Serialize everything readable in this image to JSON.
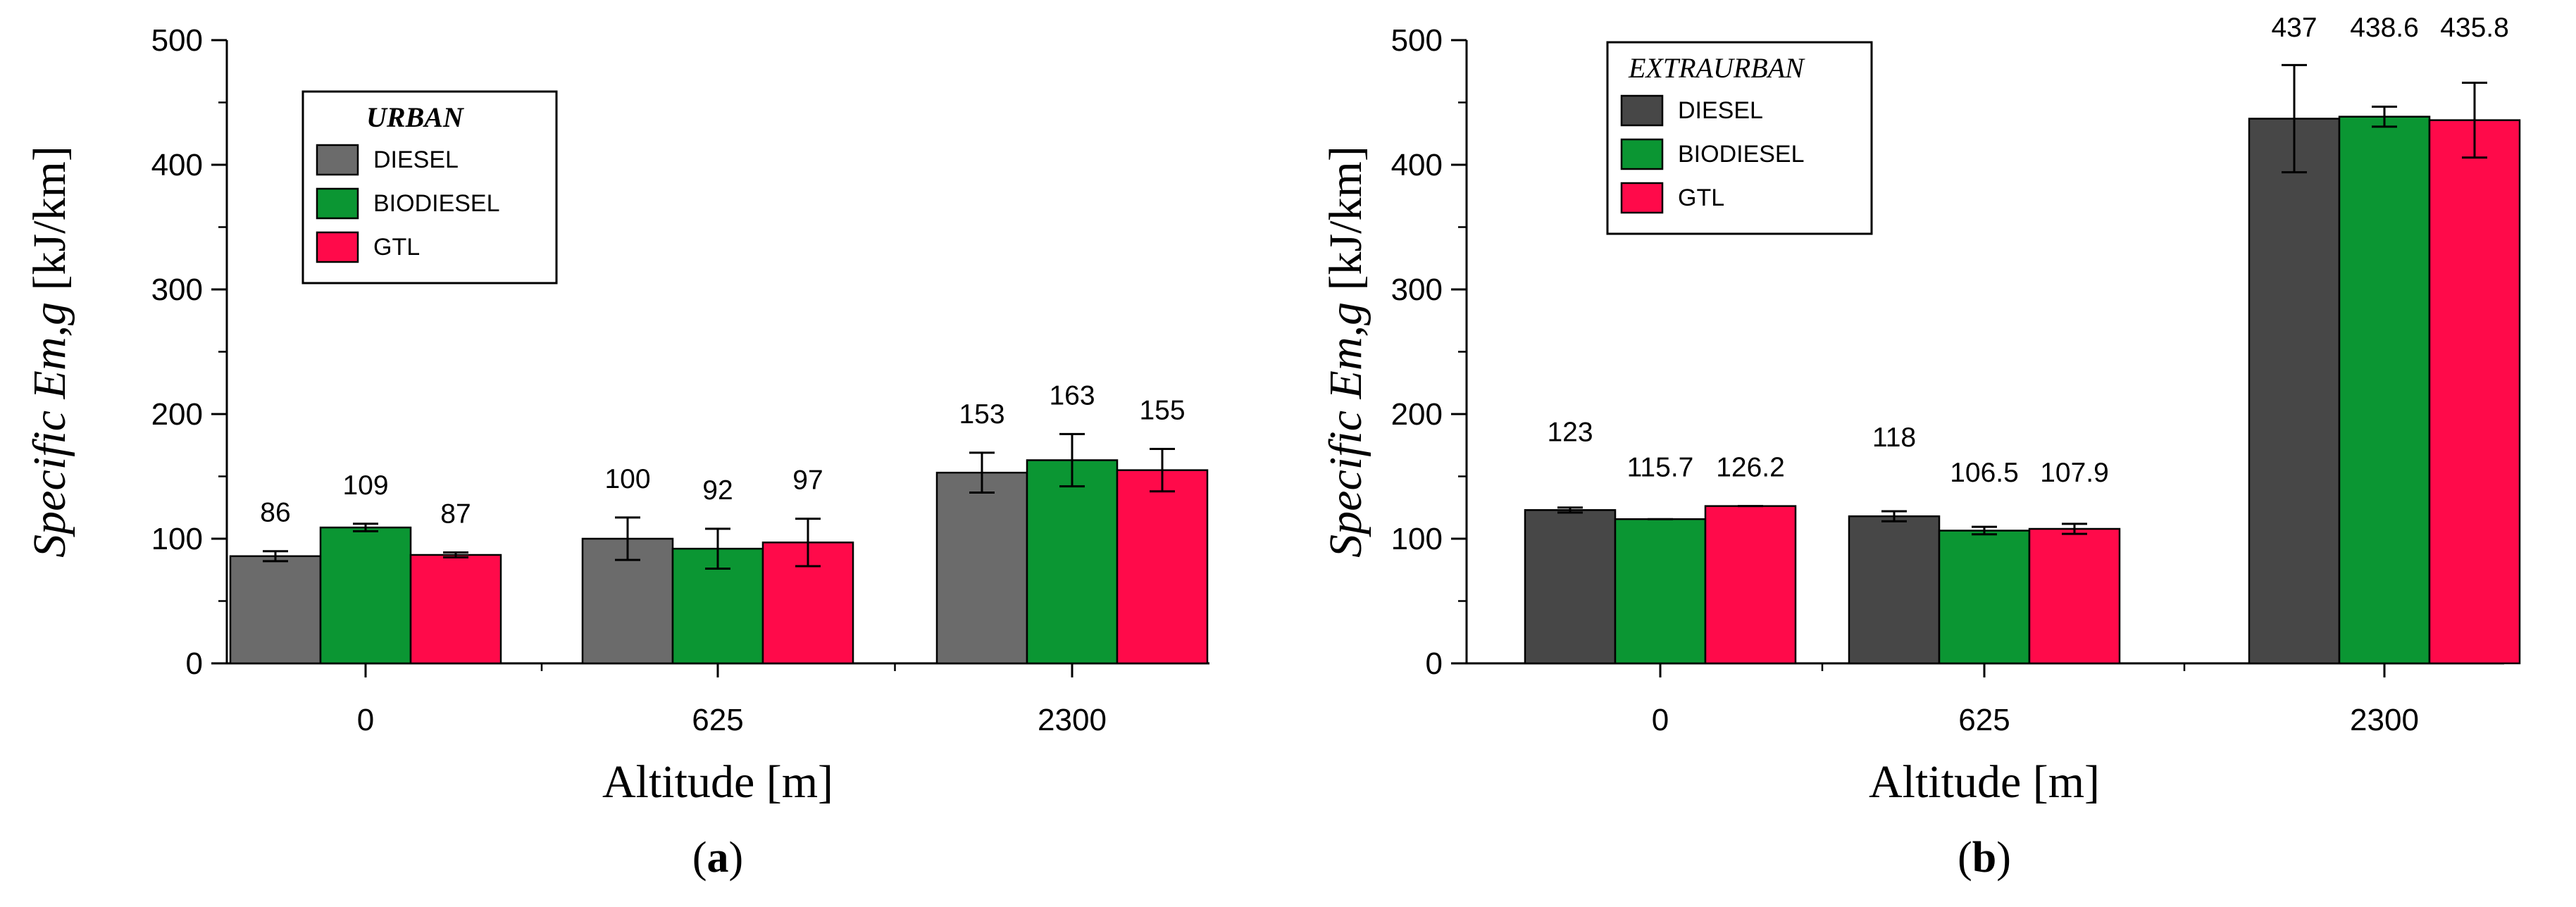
{
  "chart_data": [
    {
      "type": "bar",
      "panel": "a",
      "legend_title": "URBAN",
      "xlabel": "Altitude [m]",
      "ylabel_italic": "Specific Em,g",
      "ylabel_unit": "[kJ/km]",
      "ylim": [
        0,
        500
      ],
      "yticks": [
        0,
        100,
        200,
        300,
        400,
        500
      ],
      "categories": [
        "0",
        "625",
        "2300"
      ],
      "series": [
        {
          "name": "DIESEL",
          "color": "#6b6b6b",
          "values": [
            86,
            100,
            153
          ],
          "errors": [
            4,
            17,
            16
          ],
          "labels": [
            "86",
            "100",
            "153"
          ]
        },
        {
          "name": "BIODIESEL",
          "color": "#0b9633",
          "values": [
            109,
            92,
            163
          ],
          "errors": [
            3,
            16,
            21
          ],
          "labels": [
            "109",
            "92",
            "163"
          ]
        },
        {
          "name": "GTL",
          "color": "#ff0a4a",
          "values": [
            87,
            97,
            155
          ],
          "errors": [
            2,
            19,
            17
          ],
          "labels": [
            "87",
            "97",
            "155"
          ]
        }
      ]
    },
    {
      "type": "bar",
      "panel": "b",
      "legend_title": "EXTRAURBAN",
      "xlabel": "Altitude [m]",
      "ylabel_italic": "Specific Em,g",
      "ylabel_unit": "[kJ/km]",
      "ylim": [
        0,
        500
      ],
      "yticks": [
        0,
        100,
        200,
        300,
        400,
        500
      ],
      "categories": [
        "0",
        "625",
        "2300"
      ],
      "series": [
        {
          "name": "DIESEL",
          "color": "#474747",
          "values": [
            123,
            118,
            437
          ],
          "errors": [
            2,
            4,
            43
          ],
          "labels": [
            "123",
            "118",
            "437"
          ]
        },
        {
          "name": "BIODIESEL",
          "color": "#0b9633",
          "values": [
            115.7,
            106.5,
            438.6
          ],
          "errors": [
            0,
            3,
            8
          ],
          "labels": [
            "115.7",
            "106.5",
            "438.6"
          ]
        },
        {
          "name": "GTL",
          "color": "#ff0a4a",
          "values": [
            126.2,
            107.9,
            435.8
          ],
          "errors": [
            0,
            4,
            30
          ],
          "labels": [
            "126.2",
            "107.9",
            "435.8"
          ]
        }
      ]
    }
  ]
}
